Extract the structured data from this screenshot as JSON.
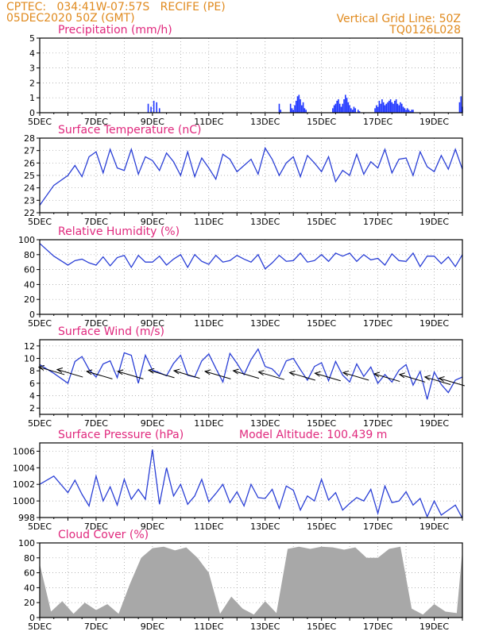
{
  "header": {
    "left_line1": "CPTEC:   034:41W-07:57S   RECIFE (PE)",
    "left_line2": "05DEC2020 50Z (GMT)",
    "right_line1": "Vertical Grid Line: 50Z",
    "right_line2": "TQ0126L028"
  },
  "colors": {
    "header": "#e08a1e",
    "title": "#e0287d",
    "line": "#2a3fd6",
    "bar": "#1f36ff",
    "cloud": "#a8a8a8",
    "frame": "#000000",
    "grid": "#9a9a9a"
  },
  "x_tick_labels": [
    "5DEC",
    "7DEC",
    "9DEC",
    "11DEC",
    "13DEC",
    "15DEC",
    "17DEC",
    "19DEC"
  ],
  "chart_data": [
    {
      "type": "bar",
      "title": "Precipitation (mm/h)",
      "ylim": [
        0,
        5
      ],
      "yticks": [
        0,
        1,
        2,
        3,
        4,
        5
      ],
      "x_days": [
        3.85,
        3.95,
        4.05,
        4.15,
        4.25,
        8.5,
        8.55,
        8.9,
        8.95,
        9.0,
        9.05,
        9.1,
        9.15,
        9.2,
        9.25,
        9.3,
        9.35,
        9.4,
        9.45,
        10.4,
        10.45,
        10.5,
        10.55,
        10.6,
        10.65,
        10.7,
        10.75,
        10.8,
        10.85,
        10.9,
        10.95,
        11.0,
        11.05,
        11.1,
        11.15,
        11.2,
        11.3,
        11.35,
        11.9,
        11.95,
        12.0,
        12.05,
        12.1,
        12.15,
        12.2,
        12.25,
        12.3,
        12.35,
        12.4,
        12.45,
        12.5,
        12.55,
        12.6,
        12.65,
        12.7,
        12.75,
        12.8,
        12.85,
        12.9,
        12.95,
        13.0,
        13.05,
        13.1,
        13.15,
        13.2,
        13.25,
        14.9,
        14.95,
        15.0
      ],
      "values": [
        0.6,
        0.4,
        0.8,
        0.7,
        0.3,
        0.6,
        0.2,
        0.6,
        0.3,
        0.2,
        0.5,
        0.8,
        1.1,
        1.2,
        0.9,
        0.5,
        0.7,
        0.3,
        0.2,
        0.3,
        0.5,
        0.6,
        0.8,
        0.9,
        0.6,
        0.4,
        0.6,
        0.9,
        1.2,
        1.0,
        0.7,
        0.5,
        0.3,
        0.2,
        0.4,
        0.3,
        0.2,
        0.1,
        0.3,
        0.5,
        0.4,
        0.8,
        0.6,
        0.9,
        0.7,
        0.5,
        0.6,
        0.7,
        0.8,
        0.9,
        0.7,
        0.6,
        0.8,
        0.9,
        0.6,
        0.5,
        0.7,
        0.6,
        0.4,
        0.3,
        0.2,
        0.3,
        0.2,
        0.1,
        0.2,
        0.2,
        0.7,
        1.1,
        0.4
      ]
    },
    {
      "type": "line",
      "title": "Surface Temperature (nC)",
      "ylim": [
        22,
        28
      ],
      "yticks": [
        22,
        23,
        24,
        25,
        26,
        27,
        28
      ],
      "x_days": [
        0,
        0.5,
        1,
        1.25,
        1.5,
        1.75,
        2,
        2.25,
        2.5,
        2.75,
        3,
        3.25,
        3.5,
        3.75,
        4,
        4.25,
        4.5,
        4.75,
        5,
        5.25,
        5.5,
        5.75,
        6,
        6.25,
        6.5,
        6.75,
        7,
        7.25,
        7.5,
        7.75,
        8,
        8.25,
        8.5,
        8.75,
        9,
        9.25,
        9.5,
        9.75,
        10,
        10.25,
        10.5,
        10.75,
        11,
        11.25,
        11.5,
        11.75,
        12,
        12.25,
        12.5,
        12.75,
        13,
        13.25,
        13.5,
        13.75,
        14,
        14.25,
        14.5,
        14.75,
        15
      ],
      "values": [
        22.6,
        24.2,
        25.0,
        25.8,
        24.9,
        26.5,
        26.9,
        25.2,
        27.1,
        25.6,
        25.4,
        27.1,
        25.1,
        26.5,
        26.2,
        25.4,
        26.8,
        26.1,
        25.0,
        26.9,
        24.9,
        26.4,
        25.6,
        24.7,
        26.7,
        26.3,
        25.3,
        25.8,
        26.3,
        25.1,
        27.2,
        26.3,
        25.0,
        26.0,
        26.5,
        24.9,
        26.6,
        26.0,
        25.3,
        26.5,
        24.5,
        25.4,
        25.0,
        26.7,
        25.1,
        26.1,
        25.6,
        27.1,
        25.2,
        26.3,
        26.4,
        25.0,
        26.9,
        25.7,
        25.3,
        26.6,
        25.5,
        27.1,
        25.5
      ]
    },
    {
      "type": "line",
      "title": "Relative Humidity (%)",
      "ylim": [
        0,
        100
      ],
      "yticks": [
        0,
        20,
        40,
        60,
        80,
        100
      ],
      "x_days": [
        0,
        0.5,
        1,
        1.25,
        1.5,
        1.75,
        2,
        2.25,
        2.5,
        2.75,
        3,
        3.25,
        3.5,
        3.75,
        4,
        4.25,
        4.5,
        4.75,
        5,
        5.25,
        5.5,
        5.75,
        6,
        6.25,
        6.5,
        6.75,
        7,
        7.25,
        7.5,
        7.75,
        8,
        8.25,
        8.5,
        8.75,
        9,
        9.25,
        9.5,
        9.75,
        10,
        10.25,
        10.5,
        10.75,
        11,
        11.25,
        11.5,
        11.75,
        12,
        12.25,
        12.5,
        12.75,
        13,
        13.25,
        13.5,
        13.75,
        14,
        14.25,
        14.5,
        14.75,
        15
      ],
      "values": [
        95,
        78,
        66,
        72,
        74,
        69,
        66,
        77,
        65,
        76,
        79,
        63,
        79,
        70,
        70,
        78,
        66,
        74,
        80,
        63,
        80,
        71,
        67,
        79,
        70,
        72,
        79,
        74,
        70,
        80,
        61,
        69,
        79,
        71,
        72,
        82,
        70,
        72,
        80,
        71,
        82,
        78,
        82,
        71,
        80,
        73,
        75,
        66,
        81,
        72,
        71,
        82,
        64,
        78,
        78,
        68,
        77,
        64,
        80
      ]
    },
    {
      "type": "line",
      "title": "Surface Wind (m/s)",
      "ylim": [
        1,
        13
      ],
      "yticks": [
        2,
        4,
        6,
        8,
        10,
        12
      ],
      "x_days": [
        0,
        0.5,
        1,
        1.25,
        1.5,
        1.75,
        2,
        2.25,
        2.5,
        2.75,
        3,
        3.25,
        3.5,
        3.75,
        4,
        4.25,
        4.5,
        4.75,
        5,
        5.25,
        5.5,
        5.75,
        6,
        6.25,
        6.5,
        6.75,
        7,
        7.25,
        7.5,
        7.75,
        8,
        8.25,
        8.5,
        8.75,
        9,
        9.25,
        9.5,
        9.75,
        10,
        10.25,
        10.5,
        10.75,
        11,
        11.25,
        11.5,
        11.75,
        12,
        12.25,
        12.5,
        12.75,
        13,
        13.25,
        13.5,
        13.75,
        14,
        14.25,
        14.5,
        14.75,
        15
      ],
      "values": [
        9.0,
        7.6,
        6.0,
        9.5,
        10.3,
        8.2,
        7.0,
        9.1,
        9.6,
        6.9,
        10.9,
        10.5,
        6.0,
        10.5,
        8.1,
        7.7,
        7.2,
        9.2,
        10.5,
        7.3,
        7.0,
        9.6,
        10.7,
        8.4,
        6.2,
        10.8,
        9.2,
        7.4,
        9.8,
        11.5,
        8.7,
        8.3,
        7.1,
        9.6,
        10.0,
        8.2,
        6.5,
        8.7,
        9.3,
        6.4,
        9.5,
        7.3,
        6.2,
        9.1,
        7.1,
        8.6,
        6.0,
        7.4,
        6.2,
        8.1,
        9.0,
        5.7,
        7.9,
        3.4,
        7.8,
        5.8,
        4.5,
        6.5,
        7.0
      ],
      "arrows_x_days": [
        0.4,
        1.05,
        2.1,
        3.2,
        4.3,
        5.2,
        6.3,
        7.3,
        8.2,
        9.3,
        10.2,
        11.2,
        12.3,
        13.2,
        14.1,
        14.6
      ],
      "arrows_y": [
        8.0,
        7.6,
        7.3,
        7.3,
        7.5,
        7.4,
        7.3,
        7.4,
        7.2,
        7.1,
        7.0,
        7.1,
        6.9,
        6.8,
        6.4,
        6.2
      ]
    },
    {
      "type": "line",
      "title": "Surface Pressure (hPa)",
      "annotation": "Model Altitude: 100.439 m",
      "ylim": [
        998,
        1007
      ],
      "yticks": [
        998,
        1000,
        1002,
        1004,
        1006
      ],
      "x_days": [
        0,
        0.5,
        1,
        1.25,
        1.5,
        1.75,
        2,
        2.25,
        2.5,
        2.75,
        3,
        3.25,
        3.5,
        3.75,
        4,
        4.25,
        4.5,
        4.75,
        5,
        5.25,
        5.5,
        5.75,
        6,
        6.25,
        6.5,
        6.75,
        7,
        7.25,
        7.5,
        7.75,
        8,
        8.25,
        8.5,
        8.75,
        9,
        9.25,
        9.5,
        9.75,
        10,
        10.25,
        10.5,
        10.75,
        11,
        11.25,
        11.5,
        11.75,
        12,
        12.25,
        12.5,
        12.75,
        13,
        13.25,
        13.5,
        13.75,
        14,
        14.25,
        14.5,
        14.75,
        15
      ],
      "values": [
        1002.0,
        1003.0,
        1001.0,
        1002.5,
        1000.8,
        999.4,
        1003.0,
        1000.0,
        1001.7,
        999.5,
        1002.6,
        1000.2,
        1001.4,
        1000.2,
        1006.2,
        999.6,
        1004.0,
        1000.6,
        1002.0,
        999.6,
        1000.6,
        1002.6,
        999.9,
        1000.9,
        1002.0,
        999.8,
        1001.1,
        999.4,
        1002.0,
        1000.4,
        1000.3,
        1001.4,
        999.1,
        1001.8,
        1001.3,
        998.9,
        1000.6,
        1000.0,
        1002.6,
        1000.1,
        1001.0,
        998.9,
        999.7,
        1000.4,
        1000.0,
        1001.4,
        998.5,
        1001.8,
        999.8,
        1000.0,
        1001.1,
        999.5,
        1000.3,
        998.1,
        1000.0,
        998.3,
        998.9,
        999.5,
        997.9
      ]
    },
    {
      "type": "area",
      "title": "Cloud Cover (%)",
      "ylim": [
        0,
        100
      ],
      "yticks": [
        0,
        20,
        40,
        60,
        80,
        100
      ],
      "x_days": [
        0,
        0.4,
        0.8,
        1.2,
        1.6,
        2.0,
        2.4,
        2.8,
        3.2,
        3.6,
        4.0,
        4.4,
        4.8,
        5.2,
        5.6,
        6.0,
        6.4,
        6.8,
        7.2,
        7.6,
        8.0,
        8.4,
        8.8,
        9.2,
        9.6,
        10.0,
        10.4,
        10.8,
        11.2,
        11.6,
        12.0,
        12.4,
        12.8,
        13.2,
        13.6,
        14.0,
        14.4,
        14.8,
        15
      ],
      "values": [
        72,
        8,
        22,
        5,
        20,
        10,
        18,
        5,
        45,
        80,
        93,
        95,
        90,
        94,
        80,
        60,
        5,
        28,
        12,
        4,
        22,
        6,
        92,
        95,
        92,
        95,
        94,
        91,
        94,
        80,
        80,
        92,
        95,
        12,
        4,
        18,
        8,
        6,
        90
      ]
    }
  ]
}
